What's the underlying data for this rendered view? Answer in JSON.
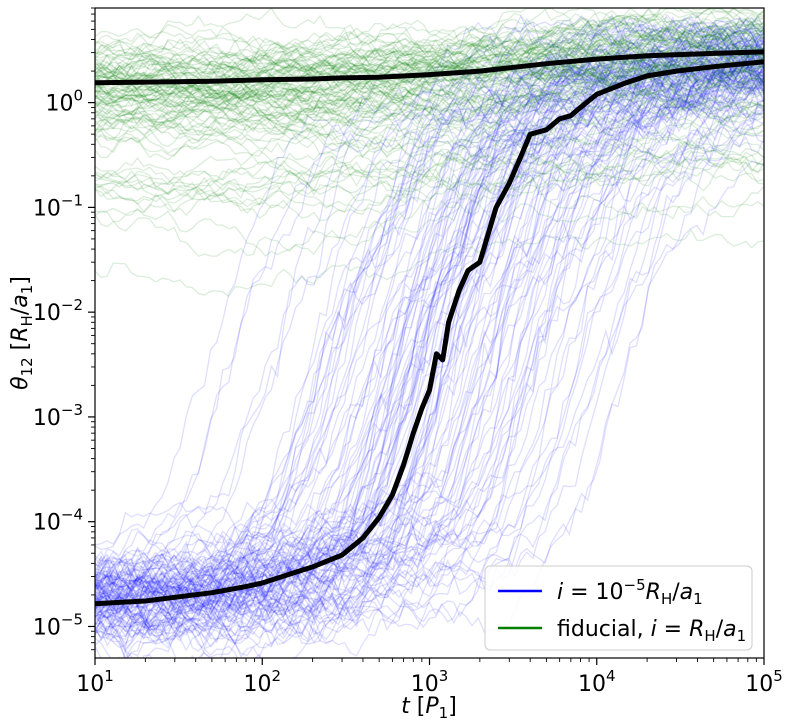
{
  "chart_data": {
    "type": "line",
    "xscale": "log",
    "yscale": "log",
    "xlim": [
      10,
      100000
    ],
    "ylim": [
      5e-06,
      8
    ],
    "xlabel": "t [P1]",
    "ylabel": "θ12 [RH/a1]",
    "x_ticks": [
      {
        "value": 10,
        "base": "10",
        "exp": "1"
      },
      {
        "value": 100,
        "base": "10",
        "exp": "2"
      },
      {
        "value": 1000,
        "base": "10",
        "exp": "3"
      },
      {
        "value": 10000,
        "base": "10",
        "exp": "4"
      },
      {
        "value": 100000,
        "base": "10",
        "exp": "5"
      }
    ],
    "y_ticks": [
      {
        "value": 1e-05,
        "base": "10",
        "exp": "−5"
      },
      {
        "value": 0.0001,
        "base": "10",
        "exp": "−4"
      },
      {
        "value": 0.001,
        "base": "10",
        "exp": "−3"
      },
      {
        "value": 0.01,
        "base": "10",
        "exp": "−2"
      },
      {
        "value": 0.1,
        "base": "10",
        "exp": "−1"
      },
      {
        "value": 1,
        "base": "10",
        "exp": "0"
      }
    ],
    "legend": {
      "placement": "lower-right",
      "entries": [
        {
          "label": "i = 10−5 RH/a1",
          "color": "#0000ff"
        },
        {
          "label": "fiducial, i = RH/a1",
          "color": "#008000"
        }
      ]
    },
    "series": [
      {
        "name": "i = 10−5 RH/a1",
        "color": "#0000ff",
        "style": "ensemble-of-faint-lines",
        "median": {
          "x": [
            10,
            20,
            30,
            50,
            80,
            100,
            150,
            200,
            300,
            400,
            500,
            600,
            700,
            800,
            900,
            1000,
            1100,
            1200,
            1300,
            1500,
            1700,
            2000,
            2500,
            3000,
            3500,
            4000,
            5000,
            6000,
            7000,
            8000,
            10000,
            15000,
            20000,
            30000,
            50000,
            100000
          ],
          "y": [
            1.65e-05,
            1.75e-05,
            1.9e-05,
            2.1e-05,
            2.4e-05,
            2.6e-05,
            3.2e-05,
            3.7e-05,
            4.8e-05,
            7e-05,
            0.00011,
            0.00018,
            0.00035,
            0.0007,
            0.0012,
            0.0018,
            0.004,
            0.0035,
            0.008,
            0.016,
            0.025,
            0.03,
            0.1,
            0.17,
            0.3,
            0.5,
            0.55,
            0.7,
            0.75,
            0.9,
            1.2,
            1.55,
            1.8,
            2.0,
            2.2,
            2.45
          ]
        }
      },
      {
        "name": "fiducial, i = RH/a1",
        "color": "#008000",
        "style": "ensemble-of-faint-lines",
        "median": {
          "x": [
            10,
            30,
            50,
            100,
            200,
            300,
            500,
            1000,
            2000,
            3000,
            5000,
            10000,
            20000,
            50000,
            100000
          ],
          "y": [
            1.55,
            1.58,
            1.6,
            1.65,
            1.68,
            1.72,
            1.75,
            1.85,
            2.0,
            2.15,
            2.35,
            2.6,
            2.8,
            2.95,
            3.05
          ]
        }
      }
    ],
    "grid": false
  }
}
